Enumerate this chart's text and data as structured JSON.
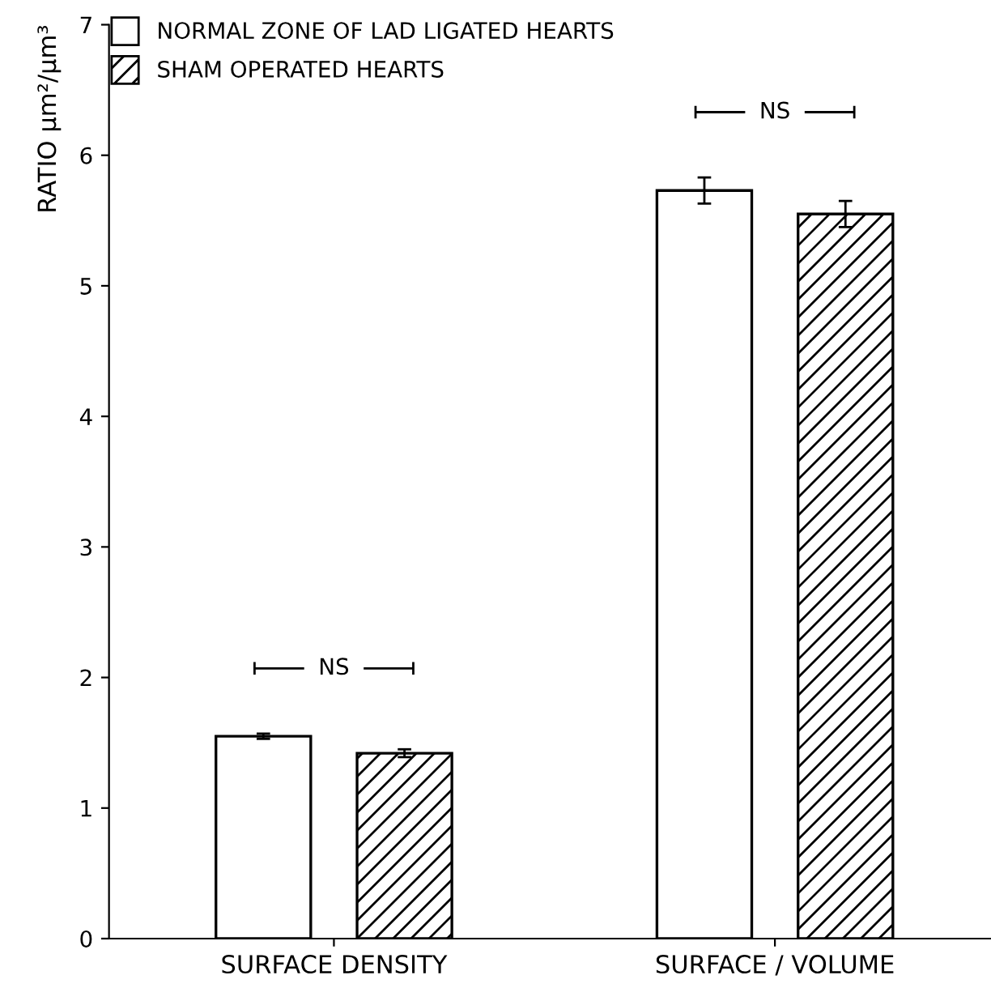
{
  "chart_data": {
    "type": "bar",
    "ylabel": "RATIO μm²/μm³",
    "categories": [
      "SURFACE DENSITY",
      "SURFACE / VOLUME"
    ],
    "series": [
      {
        "name": "NORMAL ZONE OF LAD LIGATED HEARTS",
        "color": "#ffffff",
        "values": [
          1.55,
          5.73
        ],
        "errors": [
          0.02,
          0.1
        ]
      },
      {
        "name": "SHAM OPERATED HEARTS",
        "color": "#000000",
        "values": [
          1.42,
          5.55
        ],
        "errors": [
          0.03,
          0.1
        ]
      }
    ],
    "ylim": [
      0,
      7
    ],
    "yticks": [
      0,
      1,
      2,
      3,
      4,
      5,
      6,
      7
    ],
    "annotations": [
      "NS",
      "NS"
    ],
    "grid": false,
    "legend": "top left"
  }
}
